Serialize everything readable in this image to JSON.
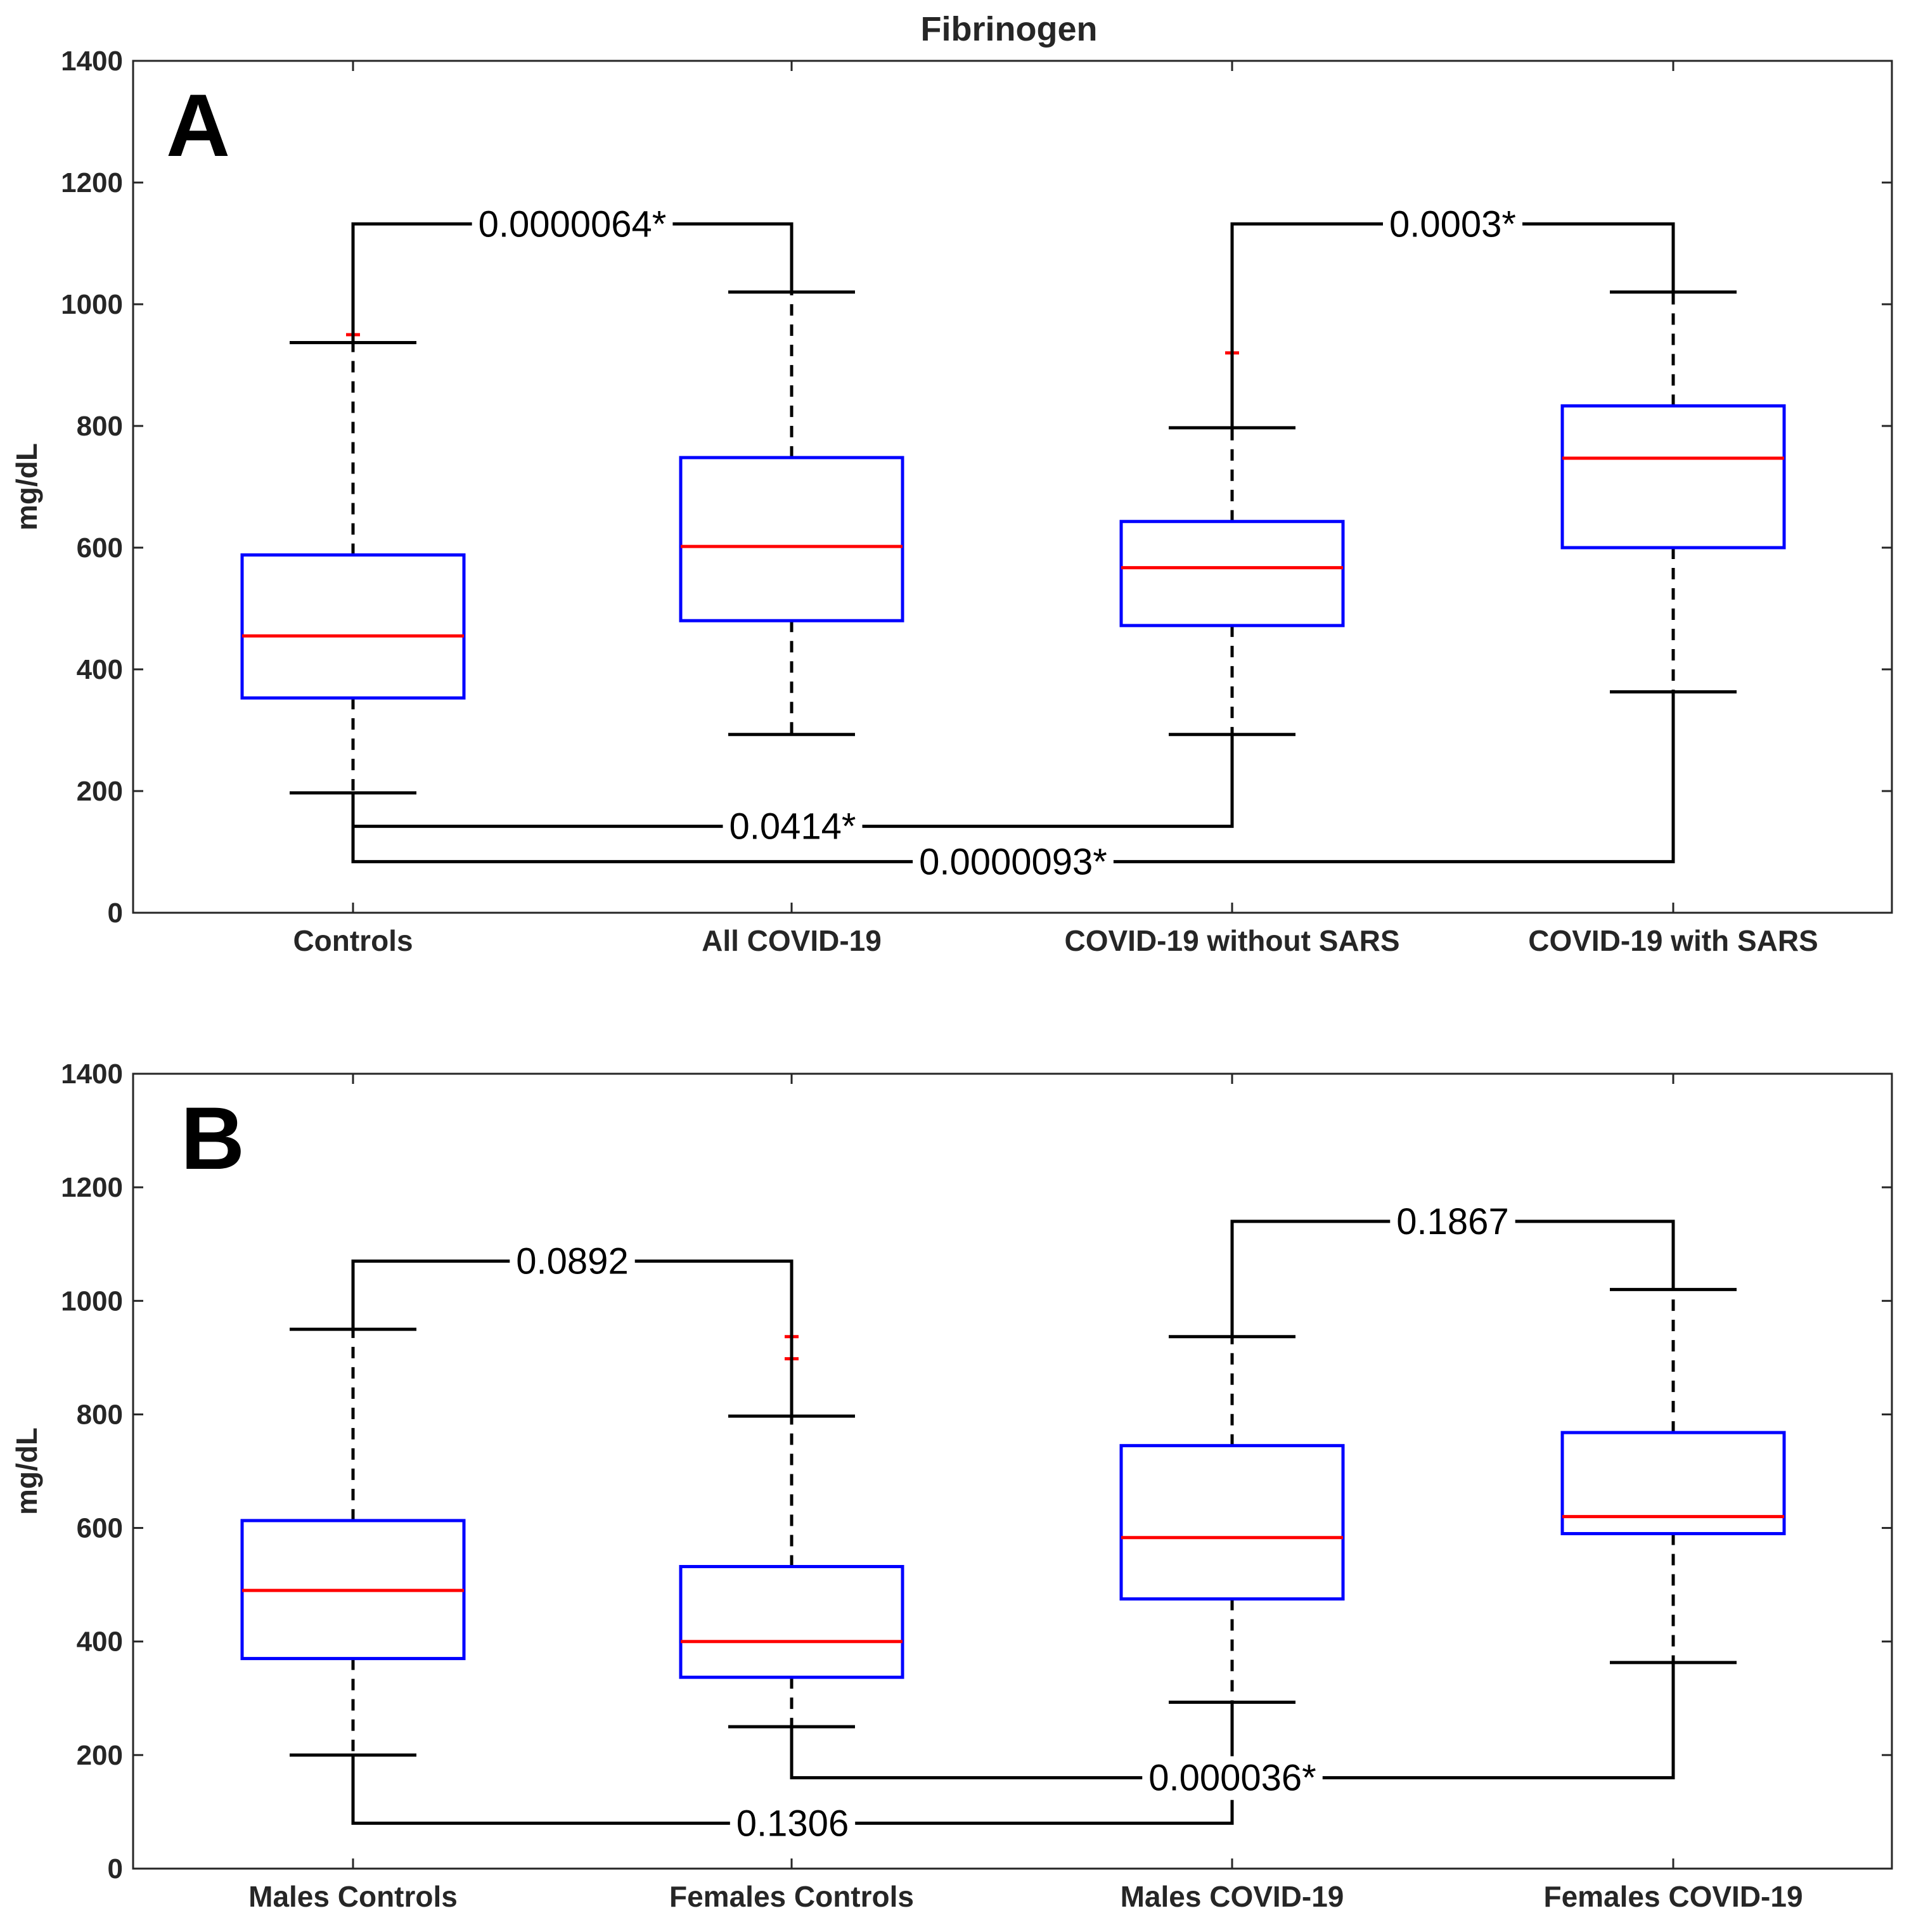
{
  "chart_data": [
    {
      "type": "box",
      "panel_label": "A",
      "title": "Fibrinogen",
      "ylabel": "mg/dL",
      "ylim": [
        0,
        1400
      ],
      "yticks": [
        0,
        200,
        400,
        600,
        800,
        1000,
        1200,
        1400
      ],
      "categories": [
        "Controls",
        "All COVID-19",
        "COVID-19 without SARS",
        "COVID-19 with SARS"
      ],
      "boxes": [
        {
          "lower_whisker": 197,
          "q1": 353,
          "median": 455,
          "q3": 588,
          "upper_whisker": 937,
          "outliers": [
            950
          ]
        },
        {
          "lower_whisker": 293,
          "q1": 480,
          "median": 602,
          "q3": 748,
          "upper_whisker": 1020,
          "outliers": []
        },
        {
          "lower_whisker": 293,
          "q1": 472,
          "median": 567,
          "q3": 643,
          "upper_whisker": 797,
          "outliers": [
            920
          ]
        },
        {
          "lower_whisker": 363,
          "q1": 600,
          "median": 747,
          "q3": 833,
          "upper_whisker": 1020,
          "outliers": []
        }
      ],
      "comparisons": [
        {
          "from": 0,
          "to": 1,
          "y": 1132,
          "from_start": 937,
          "to_start": 1020,
          "label": "0.0000064*"
        },
        {
          "from": 2,
          "to": 3,
          "y": 1132,
          "from_start": 797,
          "to_start": 1020,
          "label": "0.0003*"
        },
        {
          "from": 0,
          "to": 2,
          "y": 142,
          "from_start": 197,
          "to_start": 293,
          "label": "0.0414*"
        },
        {
          "from": 0,
          "to": 3,
          "y": 84,
          "from_start": 142,
          "to_start": 363,
          "label": "0.0000093*"
        }
      ]
    },
    {
      "type": "box",
      "panel_label": "B",
      "title": "",
      "ylabel": "mg/dL",
      "ylim": [
        0,
        1400
      ],
      "yticks": [
        0,
        200,
        400,
        600,
        800,
        1000,
        1200,
        1400
      ],
      "categories": [
        "Males Controls",
        "Females Controls",
        "Males  COVID-19",
        "Females COVID-19"
      ],
      "boxes": [
        {
          "lower_whisker": 200,
          "q1": 370,
          "median": 490,
          "q3": 613,
          "upper_whisker": 950,
          "outliers": []
        },
        {
          "lower_whisker": 250,
          "q1": 337,
          "median": 400,
          "q3": 532,
          "upper_whisker": 797,
          "outliers": [
            937,
            898
          ]
        },
        {
          "lower_whisker": 293,
          "q1": 475,
          "median": 583,
          "q3": 745,
          "upper_whisker": 937,
          "outliers": []
        },
        {
          "lower_whisker": 363,
          "q1": 590,
          "median": 620,
          "q3": 768,
          "upper_whisker": 1020,
          "outliers": []
        }
      ],
      "comparisons": [
        {
          "from": 0,
          "to": 1,
          "y": 1070,
          "from_start": 950,
          "to_start": 797,
          "label": "0.0892"
        },
        {
          "from": 2,
          "to": 3,
          "y": 1140,
          "from_start": 937,
          "to_start": 1020,
          "label": "0.1867"
        },
        {
          "from": 0,
          "to": 2,
          "y": 80,
          "from_start": 200,
          "to_start": 293,
          "label": "0.1306"
        },
        {
          "from": 1,
          "to": 3,
          "y": 160,
          "from_start": 250,
          "to_start": 363,
          "label": "0.000036*"
        }
      ]
    }
  ],
  "colors": {
    "box": "#0000ff",
    "median": "#ff0000",
    "outlier": "#ff0000",
    "whisker": "#000000",
    "axis": "#262626"
  }
}
